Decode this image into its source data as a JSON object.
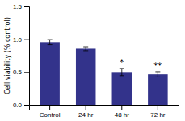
{
  "chart_data": {
    "type": "bar",
    "categories": [
      "Control",
      "24 hr",
      "48 hr",
      "72 hr"
    ],
    "values": [
      0.955,
      0.855,
      0.5,
      0.465
    ],
    "errors": [
      0.04,
      0.03,
      0.055,
      0.04
    ],
    "color": "#33338B",
    "ylabel": "Cell viability (% control)",
    "ylim": [
      0.0,
      1.5
    ],
    "yticks": [
      {
        "value": 0.0,
        "label": "0.0"
      },
      0.5,
      {
        "value": 1.0,
        "label": "1.0"
      },
      1.5
    ],
    "annotations": [
      {
        "text": "*",
        "category": "48 hr"
      },
      {
        "text": "**",
        "category": "72 hr"
      }
    ],
    "grid": false
  }
}
